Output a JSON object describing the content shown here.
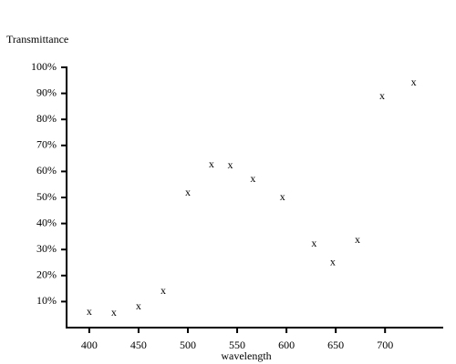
{
  "chart_data": {
    "type": "scatter",
    "title": "Transmittance",
    "x_label": "wavelength",
    "marker": "x",
    "color": "#000000",
    "x": [
      400,
      425,
      450,
      475,
      500,
      524,
      543,
      566,
      596,
      628,
      647,
      672,
      697,
      729
    ],
    "values": [
      5.8,
      5.5,
      7.9,
      13.9,
      51.7,
      62.5,
      62.2,
      56.9,
      50,
      32,
      25,
      33.5,
      88.8,
      94
    ],
    "xlim": [
      377,
      759
    ],
    "ylim": [
      0,
      100
    ],
    "xticks": [
      400,
      450,
      500,
      550,
      600,
      650,
      700
    ],
    "yticks": [
      {
        "value": 10,
        "label": "10%"
      },
      {
        "value": 20,
        "label": "20%"
      },
      {
        "value": 30,
        "label": "30%"
      },
      {
        "value": 40,
        "label": "40%"
      },
      {
        "value": 50,
        "label": "50%"
      },
      {
        "value": 60,
        "label": "60%"
      },
      {
        "value": 70,
        "label": "70%"
      },
      {
        "value": 80,
        "label": "80%"
      },
      {
        "value": 90,
        "label": "90%"
      },
      {
        "value": 100,
        "label": "100%"
      }
    ]
  }
}
